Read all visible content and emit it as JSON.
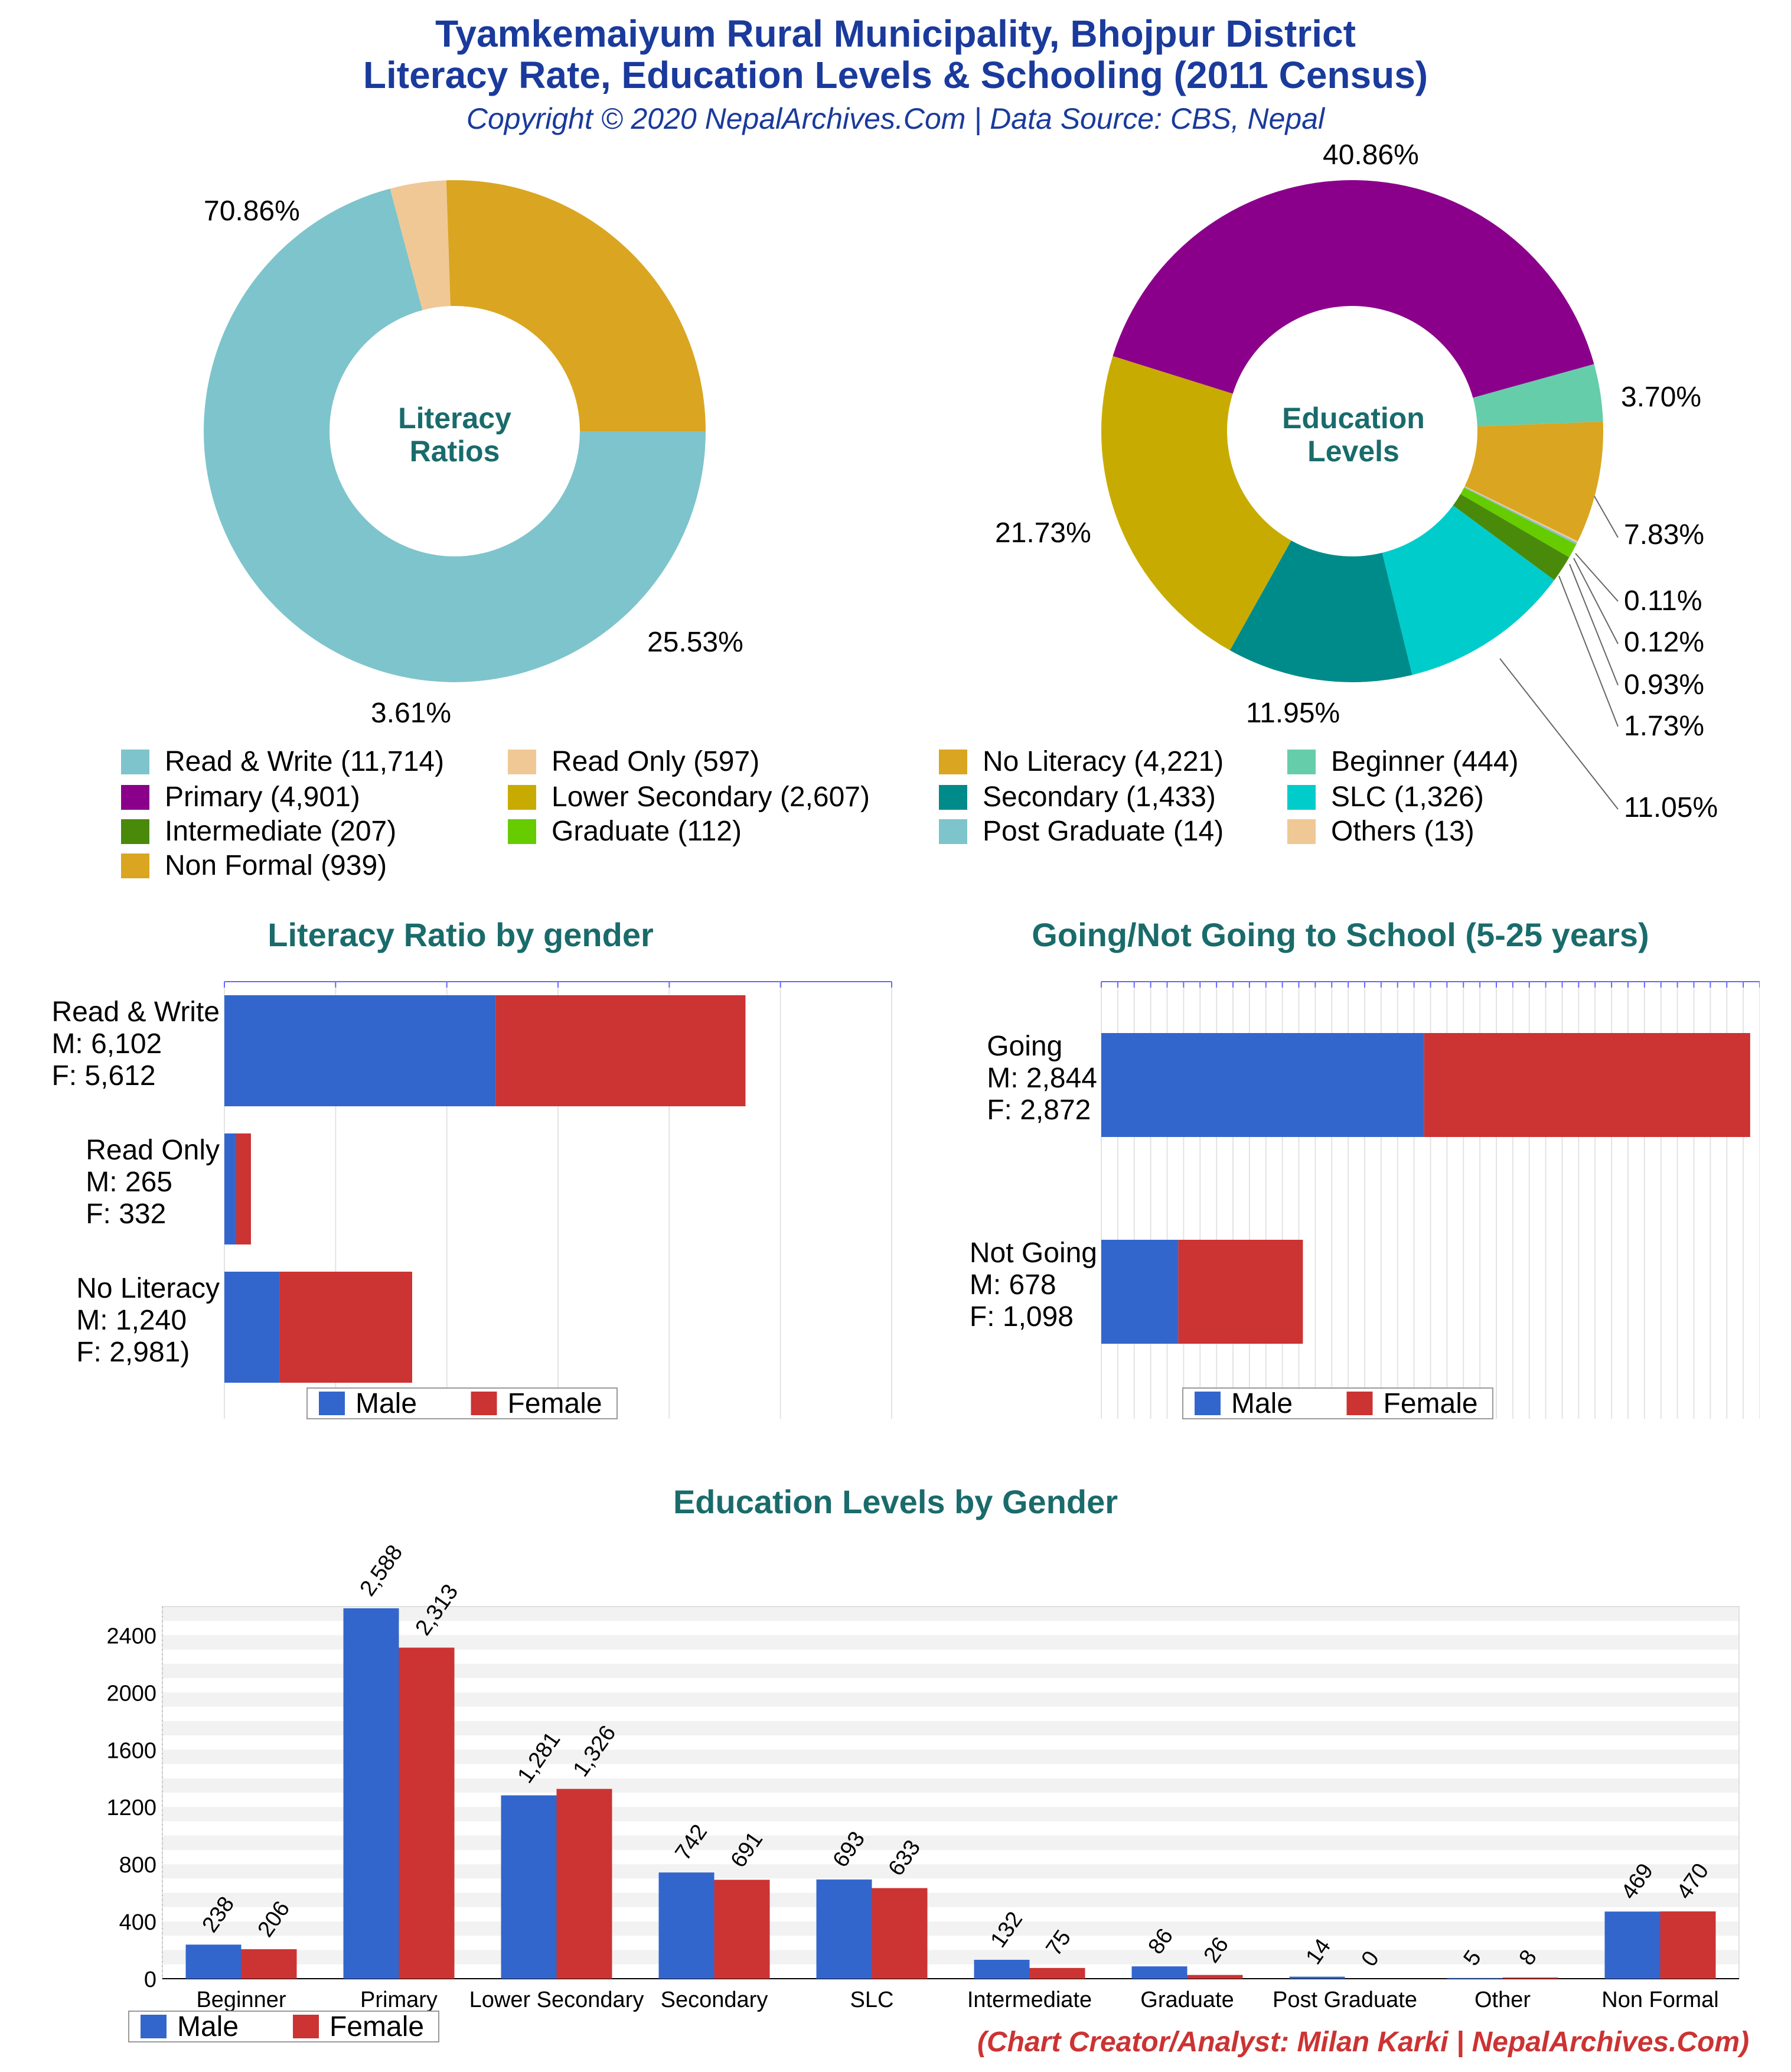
{
  "header": {
    "title_line1": "Tyamkemaiyum Rural Municipality, Bhojpur District",
    "title_line2": "Literacy Rate, Education Levels & Schooling (2011 Census)",
    "subtitle": "Copyright © 2020 NepalArchives.Com | Data Source: CBS, Nepal"
  },
  "footer": {
    "credit": "(Chart Creator/Analyst: Milan Karki | NepalArchives.Com)"
  },
  "chart_data": [
    {
      "id": "literacy-ratios",
      "type": "pie",
      "center_label_line1": "Literacy",
      "center_label_line2": "Ratios",
      "slices": [
        {
          "label": "Read & Write",
          "value": 11714,
          "percent_label": "70.86%",
          "color": "#7ec4cc"
        },
        {
          "label": "Read Only",
          "value": 597,
          "percent_label": "3.61%",
          "color": "#f0c896"
        },
        {
          "label": "No Literacy",
          "value": 4221,
          "percent_label": "25.53%",
          "color": "#daa520"
        }
      ]
    },
    {
      "id": "education-levels",
      "type": "pie",
      "center_label_line1": "Education",
      "center_label_line2": "Levels",
      "slices": [
        {
          "label": "Beginner",
          "value": 444,
          "percent_label": "3.70%",
          "color": "#66cdaa"
        },
        {
          "label": "Non Formal",
          "value": 939,
          "percent_label": "7.83%",
          "color": "#daa520"
        },
        {
          "label": "Others",
          "value": 13,
          "percent_label": "0.11%",
          "color": "#f0c896"
        },
        {
          "label": "Post Graduate",
          "value": 14,
          "percent_label": "0.12%",
          "color": "#7ec4cc"
        },
        {
          "label": "Graduate",
          "value": 112,
          "percent_label": "0.93%",
          "color": "#66cc00"
        },
        {
          "label": "Intermediate",
          "value": 207,
          "percent_label": "1.73%",
          "color": "#4a8a0a"
        },
        {
          "label": "SLC",
          "value": 1326,
          "percent_label": "11.05%",
          "color": "#00cccc"
        },
        {
          "label": "Secondary",
          "value": 1433,
          "percent_label": "11.95%",
          "color": "#008b8b"
        },
        {
          "label": "Lower Secondary",
          "value": 2607,
          "percent_label": "21.73%",
          "color": "#c8ab00"
        },
        {
          "label": "Primary",
          "value": 4901,
          "percent_label": "40.86%",
          "color": "#8b008b"
        }
      ]
    },
    {
      "id": "literacy-by-gender",
      "type": "bar",
      "orientation": "horizontal",
      "stacked": true,
      "title": "Literacy Ratio by gender",
      "categories": [
        {
          "l1": "Read & Write",
          "l2": "M: 6,102",
          "l3": "F: 5,612"
        },
        {
          "l1": "Read Only",
          "l2": "M: 265",
          "l3": "F: 332"
        },
        {
          "l1": "No Literacy",
          "l2": "M: 1,240",
          "l3": "F: 2,981)"
        }
      ],
      "series": [
        {
          "name": "Male",
          "values": [
            6102,
            265,
            1240
          ],
          "color": "#3366cc"
        },
        {
          "name": "Female",
          "values": [
            5612,
            332,
            2981
          ],
          "color": "#cc3333"
        }
      ],
      "xlim": [
        0,
        15000
      ],
      "grid": true,
      "legend": "bottom"
    },
    {
      "id": "schooling",
      "type": "bar",
      "orientation": "horizontal",
      "stacked": true,
      "title": "Going/Not Going to School (5-25 years)",
      "categories": [
        {
          "l1": "Going",
          "l2": "M: 2,844",
          "l3": "F: 2,872"
        },
        {
          "l1": "Not Going",
          "l2": "M: 678",
          "l3": "F: 1,098"
        }
      ],
      "series": [
        {
          "name": "Male",
          "values": [
            2844,
            678
          ],
          "color": "#3366cc"
        },
        {
          "name": "Female",
          "values": [
            2872,
            1098
          ],
          "color": "#cc3333"
        }
      ],
      "xlim": [
        0,
        5800
      ],
      "grid": true,
      "legend": "bottom"
    },
    {
      "id": "education-by-gender",
      "type": "bar",
      "title": "Education Levels by Gender",
      "categories": [
        "Beginner",
        "Primary",
        "Lower Secondary",
        "Secondary",
        "SLC",
        "Intermediate",
        "Graduate",
        "Post Graduate",
        "Other",
        "Non Formal"
      ],
      "series": [
        {
          "name": "Male",
          "values": [
            238,
            2588,
            1281,
            742,
            693,
            132,
            86,
            14,
            5,
            469
          ],
          "labels": [
            "238",
            "2,588",
            "1,281",
            "742",
            "693",
            "132",
            "86",
            "14",
            "5",
            "469"
          ],
          "color": "#3366cc"
        },
        {
          "name": "Female",
          "values": [
            206,
            2313,
            1326,
            691,
            633,
            75,
            26,
            0,
            8,
            470
          ],
          "labels": [
            "206",
            "2,313",
            "1,326",
            "691",
            "633",
            "75",
            "26",
            "0",
            "8",
            "470"
          ],
          "color": "#cc3333"
        }
      ],
      "yticks": [
        "0",
        "400",
        "800",
        "1200",
        "1600",
        "2000",
        "2400"
      ],
      "ylim": [
        0,
        2600
      ],
      "grid": true,
      "legend": "bottom-left"
    }
  ]
}
